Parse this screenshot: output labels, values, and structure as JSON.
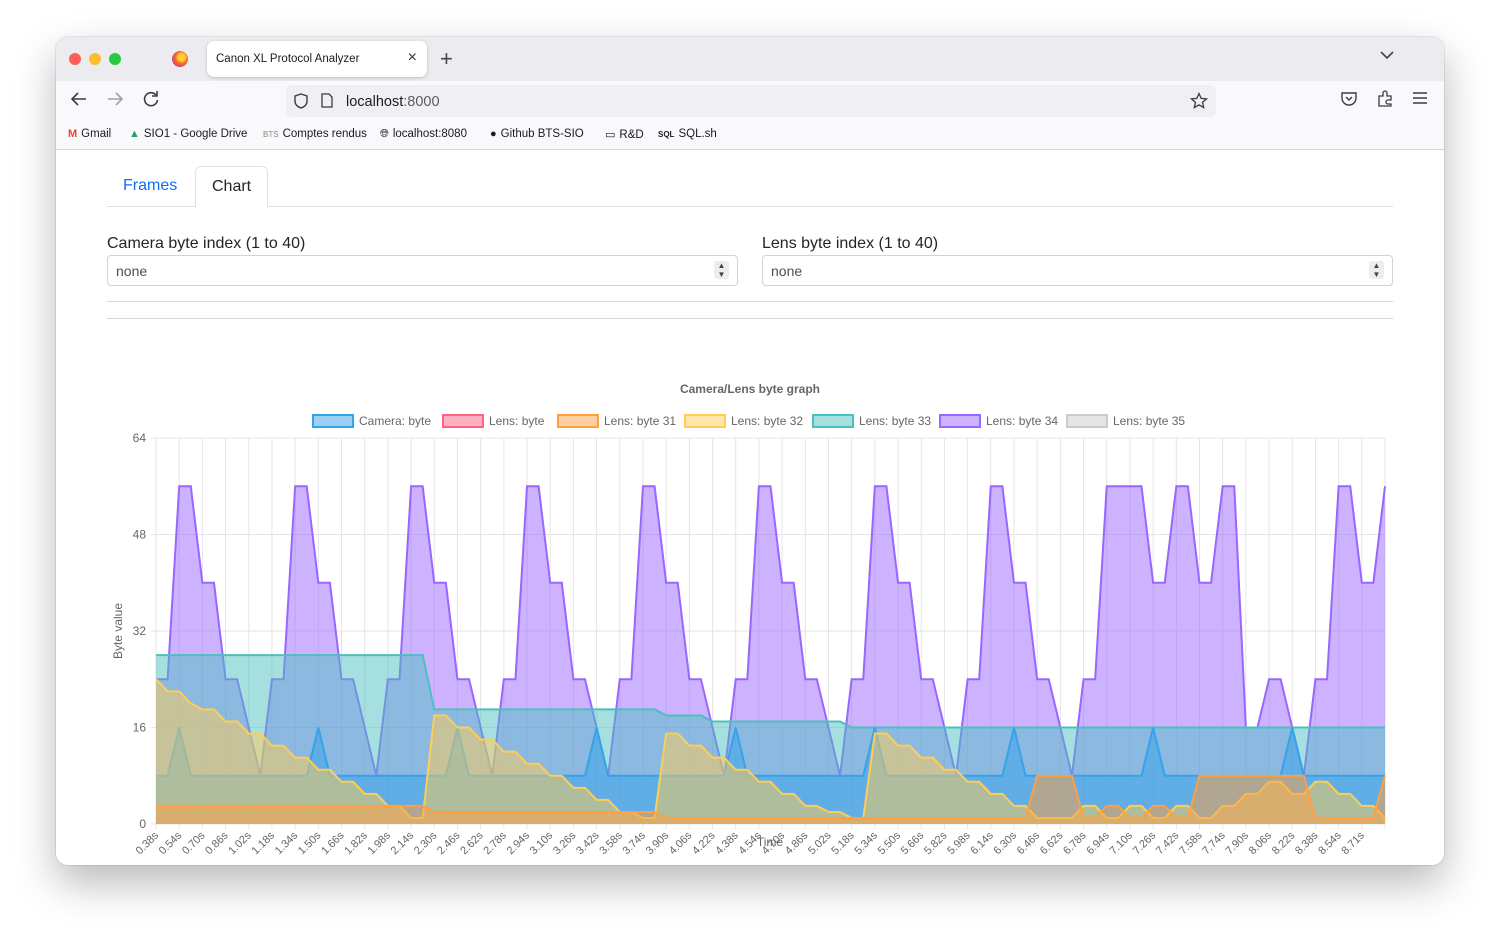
{
  "browser": {
    "tab_title": "Canon XL Protocol Analyzer",
    "url_host": "localhost",
    "url_port": ":8000",
    "bookmarks": [
      {
        "label": "Gmail",
        "icon": "gmail-icon"
      },
      {
        "label": "SIO1 - Google Drive",
        "icon": "google-drive-icon"
      },
      {
        "label": "Comptes rendus",
        "icon": "bts-icon"
      },
      {
        "label": "localhost:8080",
        "icon": "globe-icon"
      },
      {
        "label": "Github BTS-SIO",
        "icon": "github-icon"
      },
      {
        "label": "R&D",
        "icon": "folder-icon"
      },
      {
        "label": "SQL.sh",
        "icon": "sql-icon"
      }
    ]
  },
  "page": {
    "tabs": {
      "frames": "Frames",
      "chart": "Chart"
    },
    "camera_field": {
      "label": "Camera byte index (1 to 40)",
      "value": "none"
    },
    "lens_field": {
      "label": "Lens byte index (1 to 40)",
      "value": "none"
    }
  },
  "colors": {
    "camera": "#36a2eb",
    "lens": "#ff6384",
    "b31": "#ff9f40",
    "b32": "#ffcd56",
    "b33": "#4bc0c0",
    "b34": "#9966ff",
    "b35": "#c9cbcf"
  },
  "chart_data": {
    "type": "area",
    "title": "Camera/Lens byte graph",
    "xlabel": "Time",
    "ylabel": "Byte value",
    "ylim": [
      0,
      64
    ],
    "yticks": [
      0,
      16,
      32,
      48,
      64
    ],
    "x_start": 0.38,
    "x_step": 0.0786,
    "x_count": 107,
    "tick_every": 2,
    "tick_labels": [
      "0.38s",
      "0.54s",
      "0.70s",
      "0.86s",
      "1.02s",
      "1.18s",
      "1.34s",
      "1.50s",
      "1.66s",
      "1.82s",
      "1.98s",
      "2.14s",
      "2.30s",
      "2.46s",
      "2.62s",
      "2.78s",
      "2.94s",
      "3.10s",
      "3.26s",
      "3.42s",
      "3.58s",
      "3.74s",
      "3.90s",
      "4.06s",
      "4.22s",
      "4.38s",
      "4.54s",
      "4.70s",
      "4.86s",
      "5.02s",
      "5.18s",
      "5.34s",
      "5.50s",
      "5.66s",
      "5.82s",
      "5.98s",
      "6.14s",
      "6.30s",
      "6.46s",
      "6.62s",
      "6.78s",
      "6.94s",
      "7.10s",
      "7.26s",
      "7.42s",
      "7.58s",
      "7.74s",
      "7.90s",
      "8.06s",
      "8.22s",
      "8.38s",
      "8.54s",
      "8.71s"
    ],
    "series": [
      {
        "name": "Camera: byte",
        "color_key": "camera",
        "values": []
      },
      {
        "name": "Lens: byte",
        "color_key": "lens",
        "values": []
      },
      {
        "name": "Lens: byte 31",
        "color_key": "b31",
        "segments": [
          [
            0,
            24,
            3
          ],
          [
            24,
            44,
            2
          ],
          [
            44,
            63,
            1
          ],
          [
            63,
            76,
            1
          ],
          [
            76,
            80,
            8
          ],
          [
            80,
            82,
            1
          ],
          [
            82,
            84,
            3
          ],
          [
            82,
            84,
            3
          ],
          [
            84,
            86,
            1
          ],
          [
            86,
            88,
            3
          ],
          [
            88,
            90,
            1
          ],
          [
            90,
            100,
            8
          ],
          [
            100,
            106,
            1
          ],
          [
            106,
            107,
            8
          ]
        ]
      },
      {
        "name": "Lens: byte 32",
        "color_key": "b32",
        "segments": [
          [
            0,
            1,
            24
          ],
          [
            1,
            3,
            22
          ],
          [
            3,
            4,
            20
          ],
          [
            4,
            6,
            19
          ],
          [
            6,
            8,
            17
          ],
          [
            8,
            10,
            15
          ],
          [
            10,
            12,
            13
          ],
          [
            12,
            14,
            11
          ],
          [
            14,
            16,
            9
          ],
          [
            16,
            18,
            7
          ],
          [
            18,
            20,
            5
          ],
          [
            20,
            22,
            3
          ],
          [
            22,
            24,
            1
          ],
          [
            24,
            26,
            18
          ],
          [
            26,
            28,
            16
          ],
          [
            28,
            30,
            14
          ],
          [
            30,
            32,
            12
          ],
          [
            32,
            34,
            10
          ],
          [
            34,
            36,
            8
          ],
          [
            36,
            38,
            6
          ],
          [
            38,
            40,
            4
          ],
          [
            40,
            42,
            2
          ],
          [
            42,
            44,
            1
          ],
          [
            44,
            46,
            15
          ],
          [
            46,
            48,
            13
          ],
          [
            48,
            50,
            11
          ],
          [
            50,
            52,
            9
          ],
          [
            52,
            54,
            7
          ],
          [
            54,
            56,
            5
          ],
          [
            56,
            58,
            3
          ],
          [
            58,
            60,
            2
          ],
          [
            60,
            62,
            1
          ],
          [
            62,
            64,
            15
          ],
          [
            64,
            66,
            13
          ],
          [
            66,
            68,
            11
          ],
          [
            68,
            70,
            9
          ],
          [
            70,
            72,
            7
          ],
          [
            72,
            74,
            5
          ],
          [
            74,
            76,
            3
          ],
          [
            76,
            78,
            1
          ],
          [
            78,
            80,
            1
          ],
          [
            80,
            82,
            3
          ],
          [
            82,
            84,
            1
          ],
          [
            84,
            86,
            3
          ],
          [
            86,
            88,
            1
          ],
          [
            88,
            90,
            3
          ],
          [
            90,
            92,
            1
          ],
          [
            92,
            94,
            3
          ],
          [
            94,
            96,
            5
          ],
          [
            96,
            98,
            7
          ],
          [
            98,
            100,
            5
          ],
          [
            100,
            102,
            7
          ],
          [
            102,
            104,
            5
          ],
          [
            104,
            106,
            3
          ],
          [
            106,
            107,
            1
          ]
        ]
      },
      {
        "name": "Lens: byte 33",
        "color_key": "b33",
        "segments": [
          [
            0,
            24,
            28
          ],
          [
            24,
            44,
            19
          ],
          [
            44,
            48,
            18
          ],
          [
            48,
            60,
            17
          ],
          [
            60,
            107,
            16
          ]
        ]
      },
      {
        "name": "Lens: byte 34",
        "color_key": "b34",
        "pattern": [
          24,
          24,
          56,
          56,
          40,
          40,
          24,
          24,
          16,
          8
        ],
        "segments_override": [
          [
            84,
            86,
            56
          ],
          [
            86,
            88,
            40
          ],
          [
            88,
            90,
            56
          ],
          [
            90,
            92,
            40
          ],
          [
            92,
            94,
            56
          ],
          [
            94,
            96,
            16
          ]
        ]
      },
      {
        "name": "Lens: byte 35",
        "color_key": "b35",
        "values": []
      }
    ],
    "camera_pattern": [
      24,
      24,
      16,
      8,
      24,
      24,
      28,
      28,
      24,
      24,
      8,
      8
    ]
  }
}
